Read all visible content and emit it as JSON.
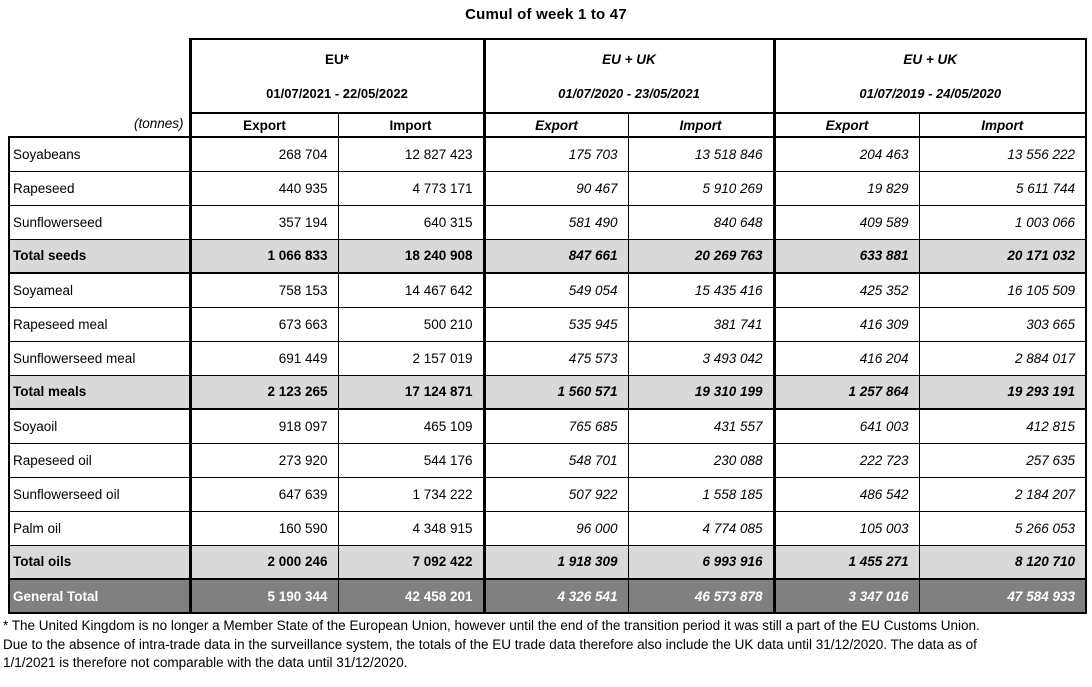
{
  "title": "Cumul of week 1 to 47",
  "unit_label": "(tonnes)",
  "column_groups": [
    {
      "region": "EU*",
      "period": "01/07/2021 - 22/05/2022",
      "italic": false,
      "subcolumns": [
        "Export",
        "Import"
      ]
    },
    {
      "region": "EU + UK",
      "period": "01/07/2020 - 23/05/2021",
      "italic": true,
      "subcolumns": [
        "Export",
        "Import"
      ]
    },
    {
      "region": "EU + UK",
      "period": "01/07/2019 - 24/05/2020",
      "italic": true,
      "subcolumns": [
        "Export",
        "Import"
      ]
    }
  ],
  "rows": [
    {
      "label": "Soyabeans",
      "type": "data",
      "values": [
        "268 704",
        "12 827 423",
        "175 703",
        "13 518 846",
        "204 463",
        "13 556 222"
      ]
    },
    {
      "label": "Rapeseed",
      "type": "data",
      "values": [
        "440 935",
        "4 773 171",
        "90 467",
        "5 910 269",
        "19 829",
        "5 611 744"
      ]
    },
    {
      "label": "Sunflowerseed",
      "type": "data",
      "values": [
        "357 194",
        "640 315",
        "581 490",
        "840 648",
        "409 589",
        "1 003 066"
      ]
    },
    {
      "label": "Total seeds",
      "type": "subtotal",
      "values": [
        "1 066 833",
        "18 240 908",
        "847 661",
        "20 269 763",
        "633 881",
        "20 171 032"
      ]
    },
    {
      "label": "Soyameal",
      "type": "data",
      "values": [
        "758 153",
        "14 467 642",
        "549 054",
        "15 435 416",
        "425 352",
        "16 105 509"
      ]
    },
    {
      "label": "Rapeseed meal",
      "type": "data",
      "values": [
        "673 663",
        "500 210",
        "535 945",
        "381 741",
        "416 309",
        "303 665"
      ]
    },
    {
      "label": "Sunflowerseed meal",
      "type": "data",
      "values": [
        "691 449",
        "2 157 019",
        "475 573",
        "3 493 042",
        "416 204",
        "2 884 017"
      ]
    },
    {
      "label": "Total meals",
      "type": "subtotal",
      "values": [
        "2 123 265",
        "17 124 871",
        "1 560 571",
        "19 310 199",
        "1 257 864",
        "19 293 191"
      ]
    },
    {
      "label": "Soyaoil",
      "type": "data",
      "values": [
        "918 097",
        "465 109",
        "765 685",
        "431 557",
        "641 003",
        "412 815"
      ]
    },
    {
      "label": "Rapeseed oil",
      "type": "data",
      "values": [
        "273 920",
        "544 176",
        "548 701",
        "230 088",
        "222 723",
        "257 635"
      ]
    },
    {
      "label": "Sunflowerseed oil",
      "type": "data",
      "values": [
        "647 639",
        "1 734 222",
        "507 922",
        "1 558 185",
        "486 542",
        "2 184 207"
      ]
    },
    {
      "label": "Palm oil",
      "type": "data",
      "values": [
        "160 590",
        "4 348 915",
        "96 000",
        "4 774 085",
        "105 003",
        "5 266 053"
      ]
    },
    {
      "label": "Total oils",
      "type": "subtotal",
      "values": [
        "2 000 246",
        "7 092 422",
        "1 918 309",
        "6 993 916",
        "1 455 271",
        "8 120 710"
      ]
    },
    {
      "label": "General Total",
      "type": "grand",
      "values": [
        "5 190 344",
        "42 458 201",
        "4 326 541",
        "46 573 878",
        "3 347 016",
        "47 584 933"
      ]
    }
  ],
  "footnote": {
    "lines": [
      "* The United Kingdom is no longer a Member State of the European Union, however until the end of the transition period it was still a part of the EU Customs Union.",
      "Due to the absence of intra-trade data in the surveillance system, the totals of the EU trade data  therefore also include the UK data until 31/12/2020. The data as of",
      "1/1/2021 is therefore not comparable with the data until 31/12/2020."
    ]
  },
  "colors": {
    "subtotal_row_bg": "#d9d9d9",
    "grand_total_row_bg": "#808080",
    "grand_total_text": "#ffffff",
    "border": "#000000",
    "text": "#000000"
  }
}
